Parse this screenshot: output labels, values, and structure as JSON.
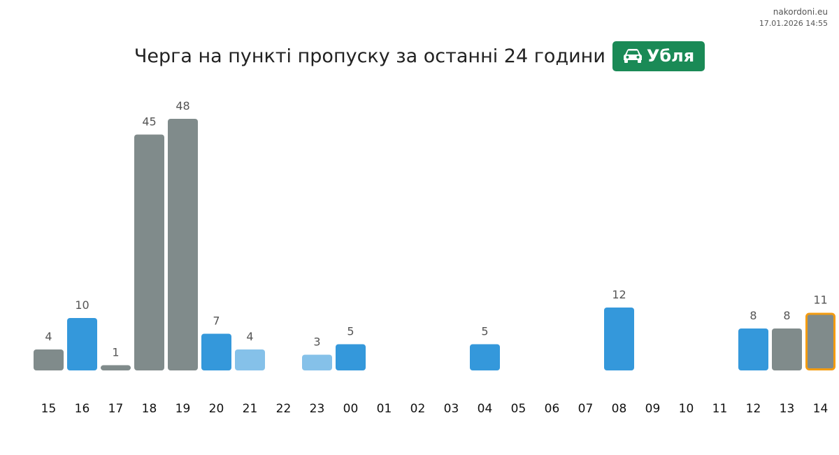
{
  "header": {
    "site": "nakordoni.eu",
    "timestamp": "17.01.2026 14:55"
  },
  "title": {
    "text": "Черга на пункті пропуску за останні 24 години",
    "checkpoint": "Убля",
    "badge_icon": "car-icon",
    "badge_color": "#1a8a56"
  },
  "colors": {
    "gray": "#808b8b",
    "blue": "#3498db",
    "light_blue": "#85c1e9",
    "highlight_border": "#f39c12"
  },
  "chart_data": {
    "type": "bar",
    "title": "Черга на пункті пропуску за останні 24 години",
    "xlabel": "",
    "ylabel": "",
    "ylim": [
      0,
      48
    ],
    "grid": false,
    "categories": [
      "15",
      "16",
      "17",
      "18",
      "19",
      "20",
      "21",
      "22",
      "23",
      "00",
      "01",
      "02",
      "03",
      "04",
      "05",
      "06",
      "07",
      "08",
      "09",
      "10",
      "11",
      "12",
      "13",
      "14"
    ],
    "values": [
      4,
      10,
      1,
      45,
      48,
      7,
      4,
      null,
      3,
      5,
      null,
      null,
      null,
      5,
      null,
      null,
      null,
      12,
      null,
      null,
      null,
      8,
      8,
      11
    ],
    "bar_colors": [
      "gray",
      "blue",
      "gray",
      "gray",
      "gray",
      "blue",
      "light_blue",
      null,
      "light_blue",
      "blue",
      null,
      null,
      null,
      "blue",
      null,
      null,
      null,
      "blue",
      null,
      null,
      null,
      "blue",
      "gray",
      "gray"
    ],
    "highlight_category": "14"
  }
}
